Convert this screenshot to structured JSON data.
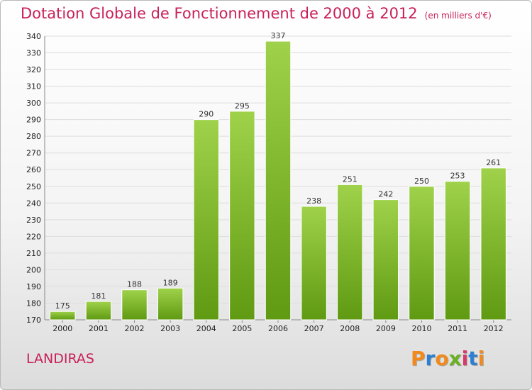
{
  "header": {
    "title": "Dotation Globale de Fonctionnement de 2000 à 2012",
    "subtitle": "(en milliers d'€)"
  },
  "footer": {
    "town": "LANDIRAS",
    "logo": "Proxiti"
  },
  "colors": {
    "accent": "#c8205a",
    "bar_top": "#9fd24a",
    "bar_bottom": "#5f9a12",
    "logo": [
      "#f08a1c",
      "#2f7fd0",
      "#f08a1c",
      "#6ab023",
      "#d63a6a",
      "#2f7fd0",
      "#f08a1c"
    ]
  },
  "chart_data": {
    "type": "bar",
    "categories": [
      "2000",
      "2001",
      "2002",
      "2003",
      "2004",
      "2005",
      "2006",
      "2007",
      "2008",
      "2009",
      "2010",
      "2011",
      "2012"
    ],
    "values": [
      175,
      181,
      188,
      189,
      290,
      295,
      337,
      238,
      251,
      242,
      250,
      253,
      261
    ],
    "title": "Dotation Globale de Fonctionnement de 2000 à 2012",
    "subtitle": "(en milliers d'€)",
    "ylim": [
      170,
      340
    ],
    "yticks": [
      170,
      180,
      190,
      200,
      210,
      220,
      230,
      240,
      250,
      260,
      270,
      280,
      290,
      300,
      310,
      320,
      330,
      340
    ],
    "grid": true,
    "data_labels": true
  }
}
